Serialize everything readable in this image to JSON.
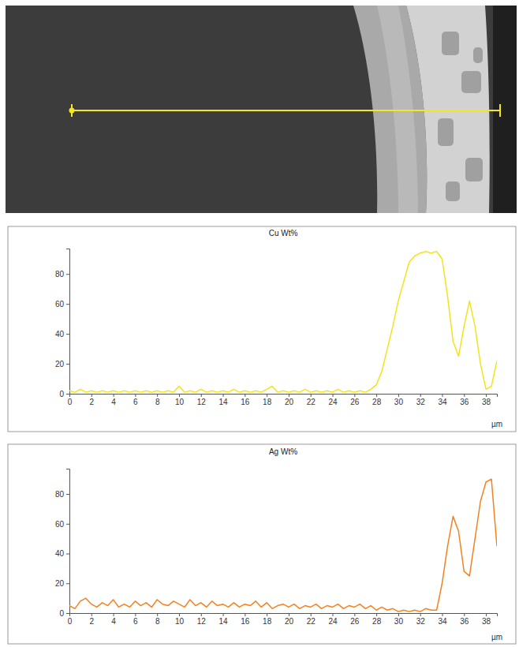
{
  "chart_data": [
    {
      "type": "line",
      "title": "Cu Wt%",
      "x_label": "µm",
      "color": "#f2e41c",
      "x": [
        0,
        0.5,
        1,
        1.5,
        2,
        2.5,
        3,
        3.5,
        4,
        4.5,
        5,
        5.5,
        6,
        6.5,
        7,
        7.5,
        8,
        8.5,
        9,
        9.5,
        10,
        10.5,
        11,
        11.5,
        12,
        12.5,
        13,
        13.5,
        14,
        14.5,
        15,
        15.5,
        16,
        16.5,
        17,
        17.5,
        18,
        18.5,
        19,
        19.5,
        20,
        20.5,
        21,
        21.5,
        22,
        22.5,
        23,
        23.5,
        24,
        24.5,
        25,
        25.5,
        26,
        26.5,
        27,
        27.5,
        28,
        28.5,
        29,
        29.5,
        30,
        30.5,
        31,
        31.5,
        32,
        32.5,
        33,
        33.5,
        34,
        34.5,
        35,
        35.5,
        36,
        36.5,
        37,
        37.5,
        38,
        38.5,
        39
      ],
      "values": [
        2,
        1,
        3,
        1,
        2,
        1,
        2,
        1,
        2,
        1,
        2,
        1,
        2,
        1,
        2,
        1,
        2,
        1,
        2,
        1,
        5,
        1,
        2,
        1,
        3,
        1,
        2,
        1,
        2,
        1,
        3,
        1,
        2,
        1,
        2,
        1,
        3,
        5,
        1,
        2,
        1,
        2,
        1,
        3,
        1,
        2,
        1,
        2,
        1,
        3,
        1,
        2,
        1,
        2,
        1,
        3,
        6,
        15,
        30,
        45,
        62,
        75,
        88,
        92,
        94,
        95,
        94,
        95,
        90,
        65,
        35,
        25,
        45,
        62,
        45,
        20,
        3,
        5,
        22
      ],
      "xlim": [
        0,
        39
      ],
      "xticks": [
        0,
        2,
        4,
        6,
        8,
        10,
        12,
        14,
        16,
        18,
        20,
        22,
        24,
        26,
        28,
        30,
        32,
        34,
        36,
        38
      ],
      "ylim": [
        0,
        97
      ],
      "yticks": [
        0,
        20,
        40,
        60,
        80
      ],
      "grid": false
    },
    {
      "type": "line",
      "title": "Ag Wt%",
      "x_label": "µm",
      "color": "#f5821f",
      "x": [
        0,
        0.5,
        1,
        1.5,
        2,
        2.5,
        3,
        3.5,
        4,
        4.5,
        5,
        5.5,
        6,
        6.5,
        7,
        7.5,
        8,
        8.5,
        9,
        9.5,
        10,
        10.5,
        11,
        11.5,
        12,
        12.5,
        13,
        13.5,
        14,
        14.5,
        15,
        15.5,
        16,
        16.5,
        17,
        17.5,
        18,
        18.5,
        19,
        19.5,
        20,
        20.5,
        21,
        21.5,
        22,
        22.5,
        23,
        23.5,
        24,
        24.5,
        25,
        25.5,
        26,
        26.5,
        27,
        27.5,
        28,
        28.5,
        29,
        29.5,
        30,
        30.5,
        31,
        31.5,
        32,
        32.5,
        33,
        33.5,
        34,
        34.5,
        35,
        35.5,
        36,
        36.5,
        37,
        37.5,
        38,
        38.5,
        39
      ],
      "values": [
        5,
        3,
        8,
        10,
        6,
        4,
        7,
        5,
        9,
        4,
        6,
        4,
        8,
        5,
        7,
        4,
        9,
        6,
        5,
        8,
        6,
        4,
        9,
        5,
        7,
        4,
        8,
        5,
        6,
        4,
        7,
        4,
        6,
        5,
        8,
        4,
        7,
        3,
        5,
        6,
        4,
        6,
        3,
        5,
        4,
        6,
        3,
        5,
        4,
        6,
        3,
        5,
        4,
        6,
        3,
        5,
        2,
        4,
        2,
        3,
        1,
        2,
        1,
        2,
        1,
        3,
        2,
        2,
        20,
        45,
        65,
        55,
        28,
        25,
        50,
        75,
        88,
        90,
        45
      ],
      "xlim": [
        0,
        39
      ],
      "xticks": [
        0,
        2,
        4,
        6,
        8,
        10,
        12,
        14,
        16,
        18,
        20,
        22,
        24,
        26,
        28,
        30,
        32,
        34,
        36,
        38
      ],
      "ylim": [
        0,
        97
      ],
      "yticks": [
        0,
        20,
        40,
        60,
        80
      ],
      "grid": false
    }
  ]
}
